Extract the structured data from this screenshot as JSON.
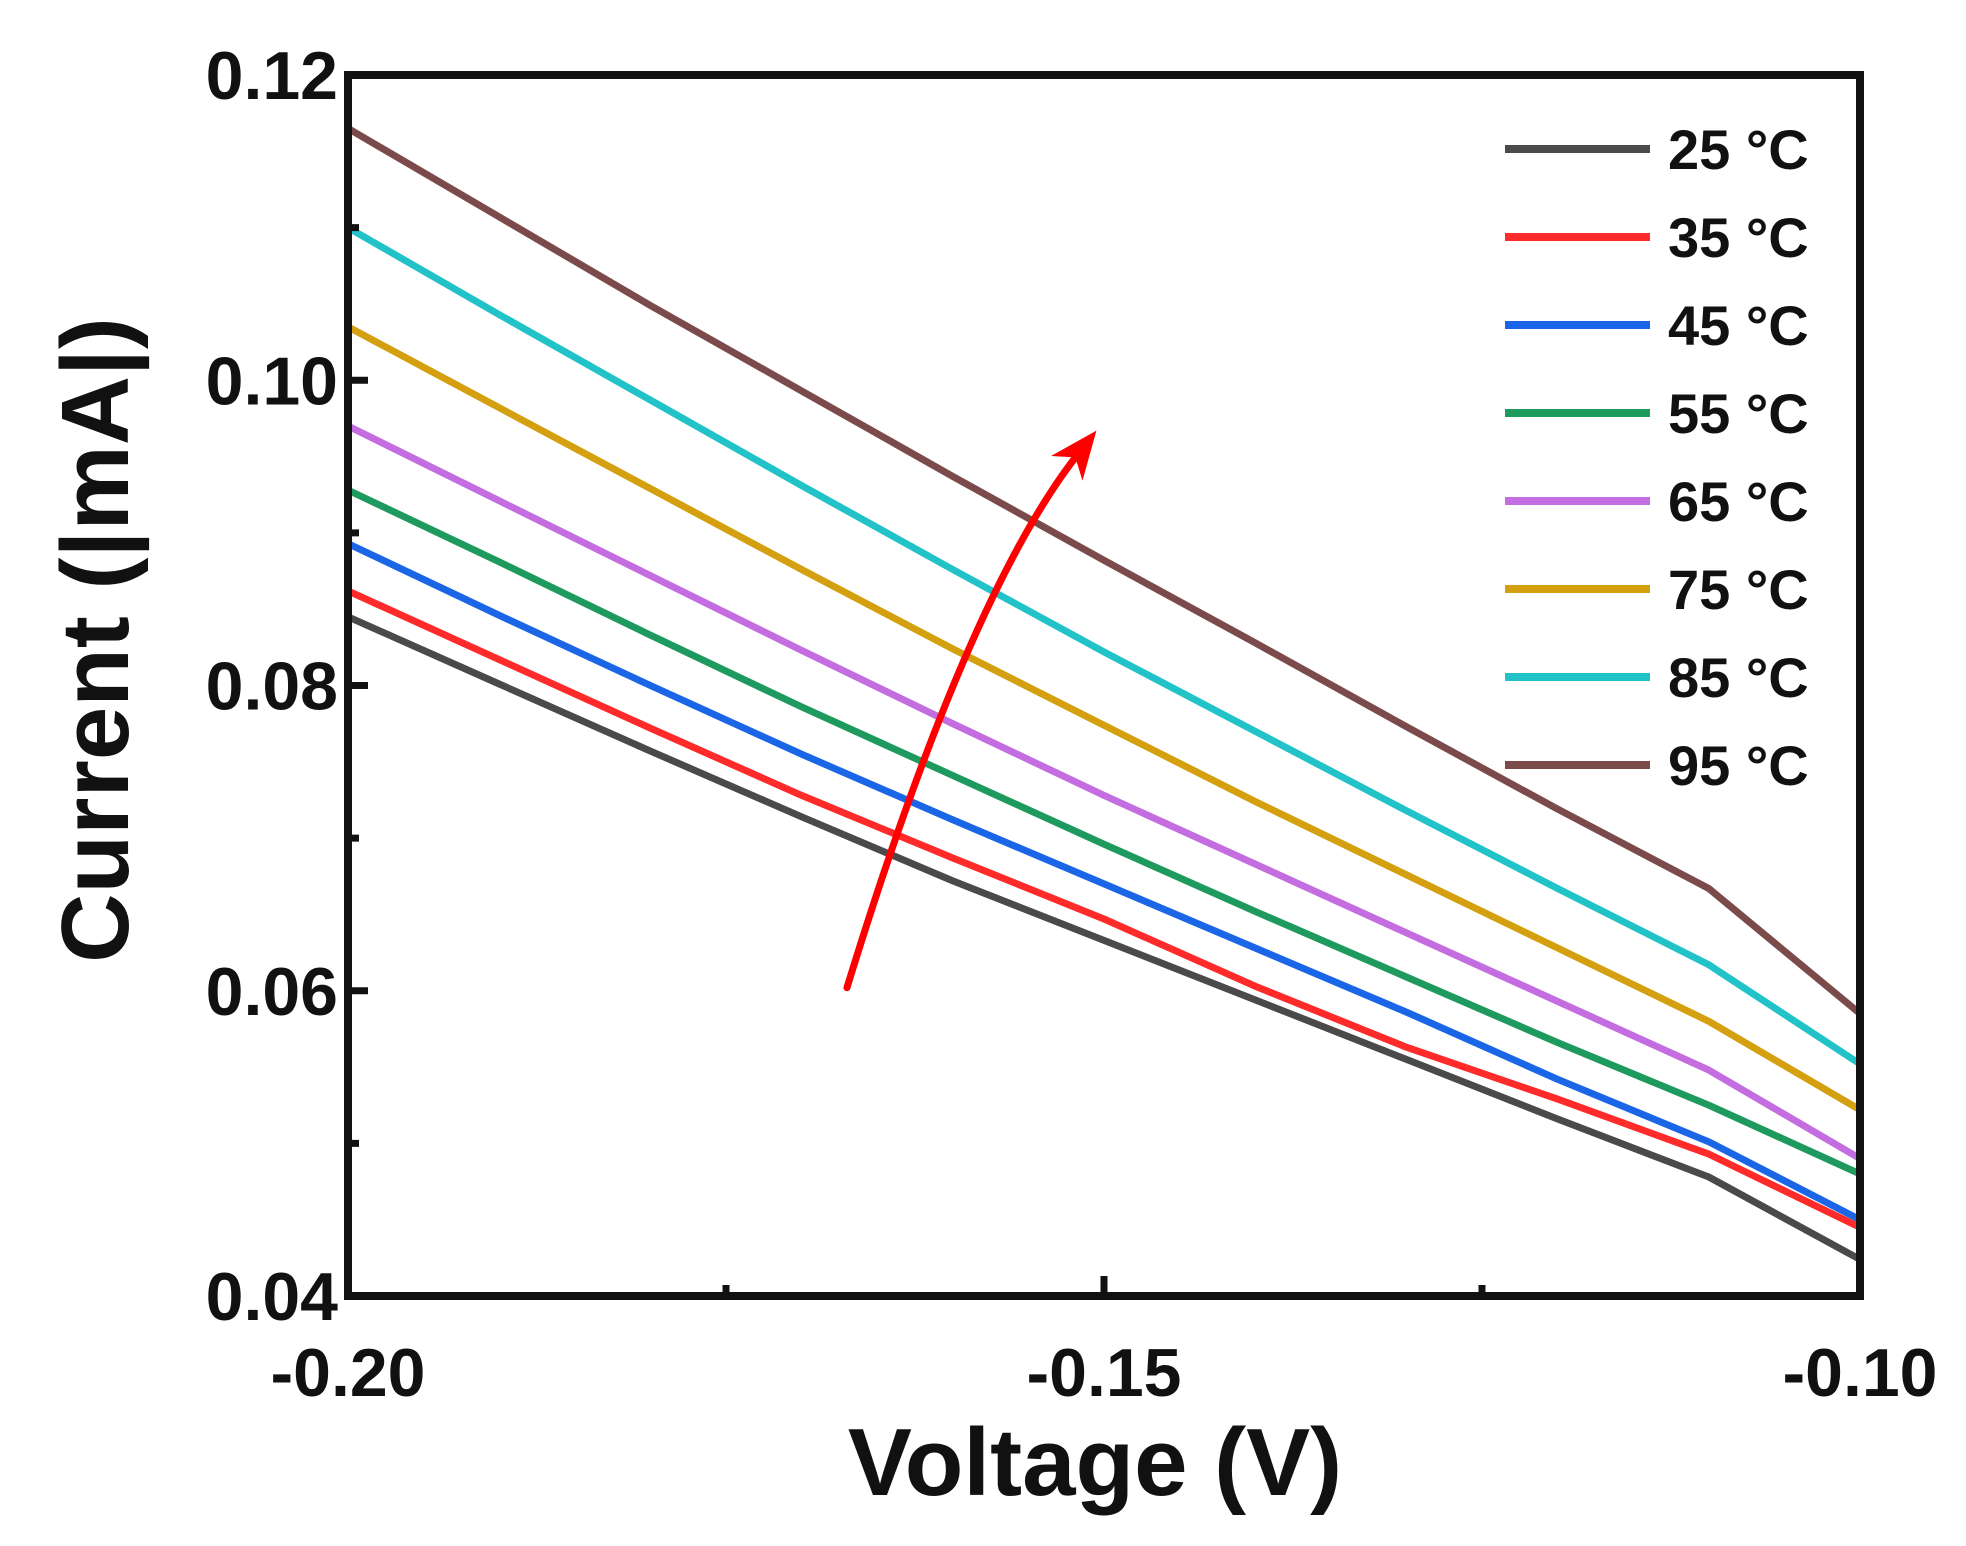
{
  "chart_data": {
    "type": "line",
    "xlabel": "Voltage (V)",
    "ylabel": "Current (|mA|)",
    "xlim": [
      -0.2,
      -0.1
    ],
    "ylim": [
      0.04,
      0.12
    ],
    "xticks": [
      -0.2,
      -0.15,
      -0.1
    ],
    "xtick_labels": [
      "-0.20",
      "-0.15",
      "-0.10"
    ],
    "yticks": [
      0.04,
      0.06,
      0.08,
      0.1,
      0.12
    ],
    "ytick_labels": [
      "0.04",
      "0.06",
      "0.08",
      "0.10",
      "0.12"
    ],
    "x": [
      -0.2,
      -0.19,
      -0.18,
      -0.17,
      -0.16,
      -0.15,
      -0.14,
      -0.13,
      -0.12,
      -0.11,
      -0.1
    ],
    "series": [
      {
        "name": "25 °C",
        "color": "#4a4a4a",
        "values": [
          0.0845,
          0.0801,
          0.0757,
          0.0714,
          0.0672,
          0.0633,
          0.0594,
          0.0555,
          0.0516,
          0.0478,
          0.0424
        ]
      },
      {
        "name": "35 °C",
        "color": "#ff2a2a",
        "values": [
          0.0862,
          0.0817,
          0.0772,
          0.0728,
          0.0687,
          0.0647,
          0.0603,
          0.0563,
          0.0529,
          0.0493,
          0.0445
        ]
      },
      {
        "name": "45 °C",
        "color": "#1a66e6",
        "values": [
          0.0893,
          0.0846,
          0.08,
          0.0755,
          0.0712,
          0.067,
          0.0628,
          0.0586,
          0.0542,
          0.0501,
          0.045
        ]
      },
      {
        "name": "55 °C",
        "color": "#1f9a5e",
        "values": [
          0.0928,
          0.0881,
          0.0833,
          0.0786,
          0.0741,
          0.0696,
          0.0652,
          0.0609,
          0.0566,
          0.0525,
          0.048
        ]
      },
      {
        "name": "65 °C",
        "color": "#c46de0",
        "values": [
          0.097,
          0.0921,
          0.0872,
          0.0823,
          0.0775,
          0.0728,
          0.0683,
          0.0638,
          0.0593,
          0.0548,
          0.049
        ]
      },
      {
        "name": "75 °C",
        "color": "#d4a010",
        "values": [
          0.1035,
          0.0982,
          0.0929,
          0.0876,
          0.0824,
          0.0774,
          0.0724,
          0.0676,
          0.0628,
          0.058,
          0.0522
        ]
      },
      {
        "name": "85 °C",
        "color": "#22c3c8",
        "values": [
          0.11,
          0.1043,
          0.0987,
          0.0931,
          0.0876,
          0.0822,
          0.077,
          0.0718,
          0.0667,
          0.0617,
          0.0552
        ]
      },
      {
        "name": "95 °C",
        "color": "#7b4a4a",
        "values": [
          0.1165,
          0.1107,
          0.1049,
          0.0993,
          0.0937,
          0.0882,
          0.0828,
          0.0773,
          0.0719,
          0.0667,
          0.0585
        ]
      }
    ],
    "annotations": [
      {
        "type": "arrow",
        "color": "#ff0000",
        "meaning": "increasing temperature",
        "from": [
          -0.167,
          0.0602
        ],
        "via": [
          -0.159,
          0.086
        ],
        "to": [
          -0.1505,
          0.0967
        ]
      }
    ],
    "legend_position": "top-right",
    "grid": false
  }
}
